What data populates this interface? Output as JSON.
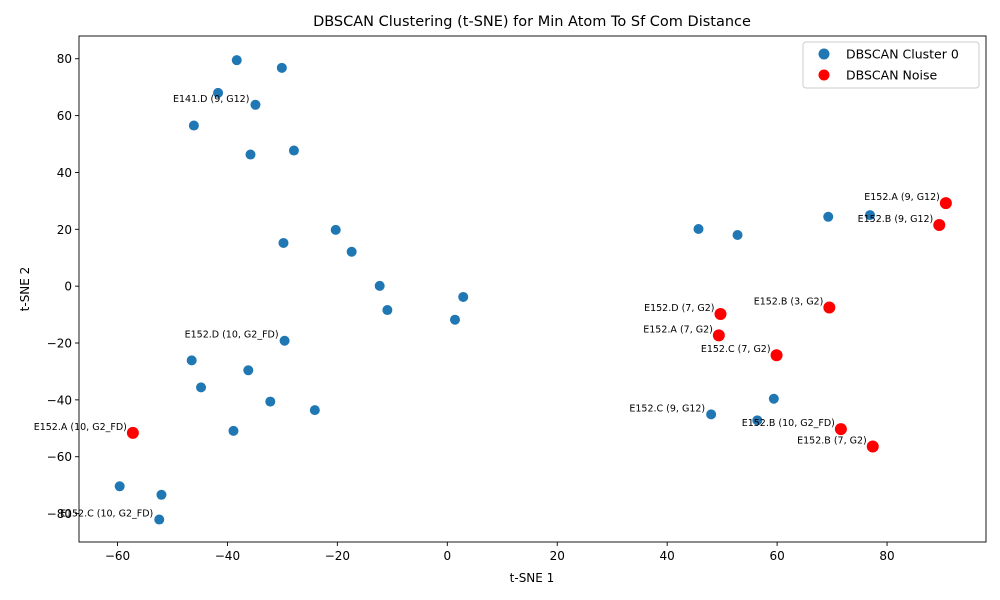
{
  "chart_data": {
    "type": "scatter",
    "title": "DBSCAN Clustering (t-SNE) for Min Atom To Sf Com Distance",
    "xlabel": "t-SNE 1",
    "ylabel": "t-SNE 2",
    "xlim": [
      -67,
      98
    ],
    "ylim": [
      -90,
      88
    ],
    "xticks": [
      -60,
      -40,
      -20,
      0,
      20,
      40,
      60,
      80
    ],
    "yticks": [
      -80,
      -60,
      -40,
      -20,
      0,
      20,
      40,
      60,
      80
    ],
    "grid": false,
    "legend_position": "top-right",
    "series": [
      {
        "name": "DBSCAN Cluster 0",
        "color": "#1f77b4",
        "points": [
          {
            "x": -38.3,
            "y": 79.5
          },
          {
            "x": -30.1,
            "y": 76.8
          },
          {
            "x": -41.7,
            "y": 68.0
          },
          {
            "x": -34.9,
            "y": 63.8
          },
          {
            "x": -46.1,
            "y": 56.5
          },
          {
            "x": -35.8,
            "y": 46.3
          },
          {
            "x": -27.9,
            "y": 47.7
          },
          {
            "x": -20.3,
            "y": 19.8
          },
          {
            "x": -29.8,
            "y": 15.2
          },
          {
            "x": -17.4,
            "y": 12.1
          },
          {
            "x": -12.3,
            "y": 0.1
          },
          {
            "x": 2.9,
            "y": -3.8
          },
          {
            "x": -10.9,
            "y": -8.4
          },
          {
            "x": 1.4,
            "y": -11.8
          },
          {
            "x": -29.6,
            "y": -19.2
          },
          {
            "x": -46.5,
            "y": -26.1
          },
          {
            "x": -36.2,
            "y": -29.6
          },
          {
            "x": -44.8,
            "y": -35.6
          },
          {
            "x": -32.2,
            "y": -40.6
          },
          {
            "x": -24.1,
            "y": -43.6
          },
          {
            "x": -38.9,
            "y": -50.9
          },
          {
            "x": -59.6,
            "y": -70.4
          },
          {
            "x": -52.0,
            "y": -73.4
          },
          {
            "x": -52.4,
            "y": -82.1
          },
          {
            "x": 45.7,
            "y": 20.1
          },
          {
            "x": 52.8,
            "y": 18.0
          },
          {
            "x": 69.3,
            "y": 24.4
          },
          {
            "x": 76.9,
            "y": 25.0
          },
          {
            "x": 59.4,
            "y": -39.6
          },
          {
            "x": 48.0,
            "y": -45.1
          },
          {
            "x": 56.4,
            "y": -47.2
          }
        ]
      },
      {
        "name": "DBSCAN Noise",
        "color": "#ff0000",
        "points": [
          {
            "x": 90.7,
            "y": 29.2
          },
          {
            "x": 89.5,
            "y": 21.5
          },
          {
            "x": 69.5,
            "y": -7.5
          },
          {
            "x": 49.7,
            "y": -9.8
          },
          {
            "x": 49.4,
            "y": -17.3
          },
          {
            "x": 59.9,
            "y": -24.3
          },
          {
            "x": 71.6,
            "y": -50.3
          },
          {
            "x": 77.4,
            "y": -56.4
          },
          {
            "x": -57.2,
            "y": -51.6
          }
        ]
      }
    ],
    "annotations": [
      {
        "text": "E141.D (9, G12)",
        "x": -34.9,
        "y": 63.8
      },
      {
        "text": "E152.A (9, G12)",
        "x": 90.7,
        "y": 29.2
      },
      {
        "text": "E152.B (9, G12)",
        "x": 89.5,
        "y": 21.5
      },
      {
        "text": "E152.B (3, G2)",
        "x": 69.5,
        "y": -7.5
      },
      {
        "text": "E152.D (7, G2)",
        "x": 49.7,
        "y": -9.8
      },
      {
        "text": "E152.A (7, G2)",
        "x": 49.4,
        "y": -17.3
      },
      {
        "text": "E152.C (7, G2)",
        "x": 59.9,
        "y": -24.3
      },
      {
        "text": "E152.D (10, G2_FD)",
        "x": -29.6,
        "y": -19.2
      },
      {
        "text": "E152.C (9, G12)",
        "x": 48.0,
        "y": -45.1
      },
      {
        "text": "E152.B (10, G2_FD)",
        "x": 71.6,
        "y": -50.3
      },
      {
        "text": "E152.B (7, G2)",
        "x": 77.4,
        "y": -56.4
      },
      {
        "text": "E152.A (10, G2_FD)",
        "x": -57.2,
        "y": -51.6
      },
      {
        "text": "E152.C (10, G2_FD)",
        "x": -52.4,
        "y": -82.1
      }
    ]
  }
}
